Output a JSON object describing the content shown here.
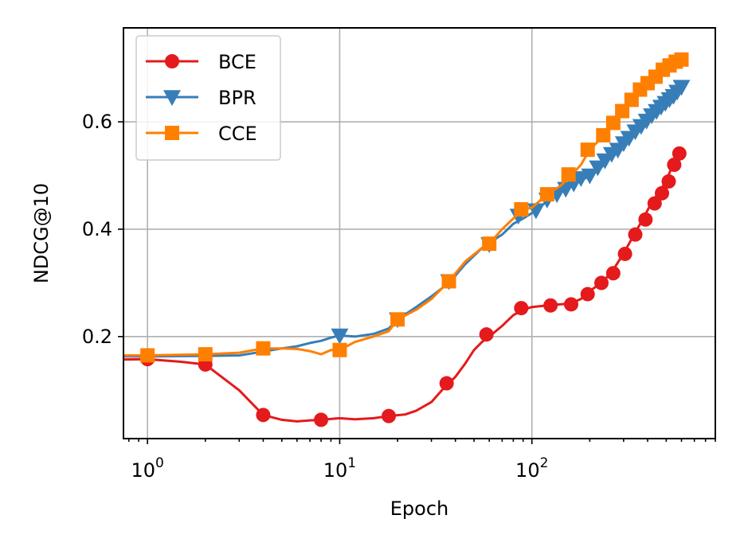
{
  "chart_data": {
    "type": "line",
    "xlabel": "Epoch",
    "ylabel": "NDCG@10",
    "xscale": "log",
    "xlim": [
      0.75,
      900
    ],
    "ylim": [
      0.01,
      0.775
    ],
    "grid": true,
    "legend_position": "top-left",
    "x_ticks": [
      {
        "value": 1,
        "base": "10",
        "exp": "0"
      },
      {
        "value": 10,
        "base": "10",
        "exp": "1"
      },
      {
        "value": 100,
        "base": "10",
        "exp": "2"
      }
    ],
    "y_ticks": [
      {
        "value": 0.2,
        "label": "0.2"
      },
      {
        "value": 0.4,
        "label": "0.4"
      },
      {
        "value": 0.6,
        "label": "0.6"
      }
    ],
    "series": [
      {
        "name": "BCE",
        "color": "#e41a1c",
        "marker": "circle",
        "line_points": [
          [
            0.7,
            0.157
          ],
          [
            1,
            0.158
          ],
          [
            1.5,
            0.153
          ],
          [
            2,
            0.148
          ],
          [
            3,
            0.1
          ],
          [
            4,
            0.054
          ],
          [
            5,
            0.045
          ],
          [
            6,
            0.042
          ],
          [
            7,
            0.044
          ],
          [
            8,
            0.045
          ],
          [
            10,
            0.048
          ],
          [
            12,
            0.046
          ],
          [
            15,
            0.048
          ],
          [
            18,
            0.052
          ],
          [
            22,
            0.055
          ],
          [
            25,
            0.062
          ],
          [
            30,
            0.078
          ],
          [
            35,
            0.105
          ],
          [
            40,
            0.125
          ],
          [
            45,
            0.15
          ],
          [
            50,
            0.175
          ],
          [
            55,
            0.19
          ],
          [
            60,
            0.2
          ],
          [
            70,
            0.22
          ],
          [
            80,
            0.24
          ],
          [
            90,
            0.25
          ],
          [
            100,
            0.255
          ],
          [
            120,
            0.258
          ],
          [
            140,
            0.26
          ],
          [
            160,
            0.262
          ],
          [
            180,
            0.27
          ],
          [
            200,
            0.285
          ],
          [
            230,
            0.3
          ],
          [
            260,
            0.32
          ],
          [
            300,
            0.355
          ],
          [
            340,
            0.39
          ],
          [
            380,
            0.42
          ],
          [
            420,
            0.45
          ],
          [
            460,
            0.47
          ],
          [
            500,
            0.49
          ],
          [
            540,
            0.52
          ],
          [
            580,
            0.54
          ]
        ],
        "markers": [
          [
            1,
            0.158
          ],
          [
            2,
            0.148
          ],
          [
            4,
            0.054
          ],
          [
            8,
            0.045
          ],
          [
            18,
            0.052
          ],
          [
            36,
            0.113
          ],
          [
            58,
            0.204
          ],
          [
            88,
            0.253
          ],
          [
            125,
            0.258
          ],
          [
            160,
            0.26
          ],
          [
            195,
            0.279
          ],
          [
            230,
            0.3
          ],
          [
            265,
            0.318
          ],
          [
            305,
            0.354
          ],
          [
            345,
            0.39
          ],
          [
            390,
            0.418
          ],
          [
            435,
            0.448
          ],
          [
            475,
            0.467
          ],
          [
            515,
            0.489
          ],
          [
            550,
            0.52
          ],
          [
            585,
            0.541
          ]
        ]
      },
      {
        "name": "BPR",
        "color": "#377eb8",
        "marker": "triangle-down",
        "line_points": [
          [
            0.7,
            0.163
          ],
          [
            1,
            0.163
          ],
          [
            2,
            0.164
          ],
          [
            3,
            0.165
          ],
          [
            4,
            0.172
          ],
          [
            5,
            0.178
          ],
          [
            6,
            0.182
          ],
          [
            7,
            0.188
          ],
          [
            8,
            0.192
          ],
          [
            9,
            0.198
          ],
          [
            10,
            0.202
          ],
          [
            12,
            0.2
          ],
          [
            15,
            0.205
          ],
          [
            18,
            0.215
          ],
          [
            20,
            0.232
          ],
          [
            25,
            0.255
          ],
          [
            30,
            0.275
          ],
          [
            37,
            0.3
          ],
          [
            45,
            0.335
          ],
          [
            55,
            0.365
          ],
          [
            60,
            0.375
          ],
          [
            70,
            0.39
          ],
          [
            80,
            0.41
          ],
          [
            90,
            0.42
          ],
          [
            100,
            0.43
          ],
          [
            120,
            0.452
          ],
          [
            140,
            0.47
          ],
          [
            160,
            0.48
          ],
          [
            180,
            0.49
          ],
          [
            200,
            0.5
          ],
          [
            230,
            0.515
          ],
          [
            260,
            0.54
          ],
          [
            300,
            0.56
          ],
          [
            350,
            0.585
          ],
          [
            400,
            0.605
          ],
          [
            450,
            0.62
          ],
          [
            500,
            0.635
          ],
          [
            550,
            0.65
          ],
          [
            600,
            0.665
          ]
        ],
        "markers": [
          [
            10,
            0.202
          ],
          [
            20,
            0.232
          ],
          [
            37,
            0.303
          ],
          [
            60,
            0.372
          ],
          [
            85,
            0.425
          ],
          [
            105,
            0.435
          ],
          [
            120,
            0.455
          ],
          [
            135,
            0.465
          ],
          [
            150,
            0.475
          ],
          [
            165,
            0.485
          ],
          [
            180,
            0.495
          ],
          [
            200,
            0.5
          ],
          [
            220,
            0.515
          ],
          [
            240,
            0.528
          ],
          [
            260,
            0.54
          ],
          [
            280,
            0.548
          ],
          [
            300,
            0.56
          ],
          [
            320,
            0.57
          ],
          [
            345,
            0.582
          ],
          [
            370,
            0.592
          ],
          [
            395,
            0.602
          ],
          [
            420,
            0.612
          ],
          [
            445,
            0.62
          ],
          [
            470,
            0.628
          ],
          [
            495,
            0.635
          ],
          [
            520,
            0.642
          ],
          [
            545,
            0.648
          ],
          [
            570,
            0.656
          ],
          [
            600,
            0.665
          ]
        ]
      },
      {
        "name": "CCE",
        "color": "#ff7f00",
        "marker": "square",
        "line_points": [
          [
            0.7,
            0.165
          ],
          [
            1,
            0.165
          ],
          [
            2,
            0.167
          ],
          [
            3,
            0.17
          ],
          [
            4,
            0.178
          ],
          [
            5,
            0.178
          ],
          [
            6,
            0.177
          ],
          [
            7,
            0.173
          ],
          [
            8,
            0.167
          ],
          [
            9,
            0.175
          ],
          [
            10,
            0.175
          ],
          [
            12,
            0.19
          ],
          [
            15,
            0.2
          ],
          [
            18,
            0.21
          ],
          [
            20,
            0.232
          ],
          [
            25,
            0.25
          ],
          [
            30,
            0.27
          ],
          [
            37,
            0.303
          ],
          [
            45,
            0.34
          ],
          [
            55,
            0.365
          ],
          [
            60,
            0.373
          ],
          [
            70,
            0.4
          ],
          [
            80,
            0.42
          ],
          [
            90,
            0.437
          ],
          [
            100,
            0.44
          ],
          [
            120,
            0.465
          ],
          [
            140,
            0.48
          ],
          [
            160,
            0.5
          ],
          [
            180,
            0.52
          ],
          [
            200,
            0.548
          ],
          [
            230,
            0.57
          ],
          [
            260,
            0.595
          ],
          [
            300,
            0.62
          ],
          [
            350,
            0.645
          ],
          [
            400,
            0.665
          ],
          [
            450,
            0.68
          ],
          [
            500,
            0.695
          ],
          [
            550,
            0.705
          ],
          [
            600,
            0.715
          ]
        ],
        "markers": [
          [
            1,
            0.165
          ],
          [
            2,
            0.167
          ],
          [
            4,
            0.178
          ],
          [
            10,
            0.175
          ],
          [
            20,
            0.232
          ],
          [
            37,
            0.303
          ],
          [
            60,
            0.373
          ],
          [
            88,
            0.437
          ],
          [
            120,
            0.465
          ],
          [
            155,
            0.502
          ],
          [
            195,
            0.548
          ],
          [
            235,
            0.575
          ],
          [
            265,
            0.598
          ],
          [
            295,
            0.62
          ],
          [
            330,
            0.641
          ],
          [
            365,
            0.66
          ],
          [
            400,
            0.672
          ],
          [
            440,
            0.684
          ],
          [
            480,
            0.697
          ],
          [
            520,
            0.705
          ],
          [
            560,
            0.712
          ],
          [
            600,
            0.716
          ]
        ]
      }
    ]
  }
}
